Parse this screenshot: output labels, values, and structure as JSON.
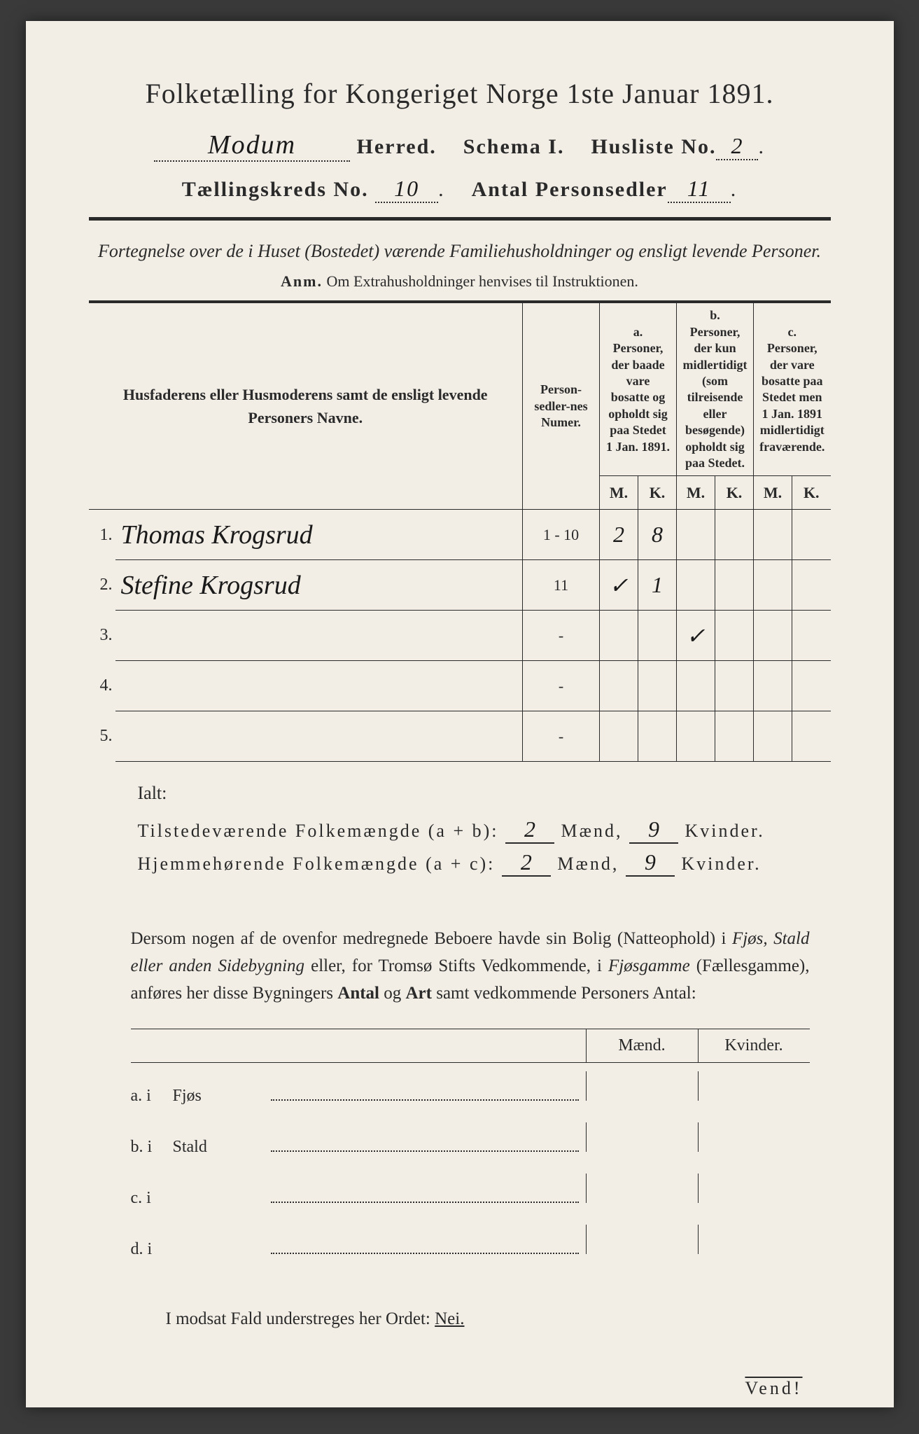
{
  "header": {
    "title": "Folketælling for Kongeriget Norge 1ste Januar 1891.",
    "herred_value": "Modum",
    "herred_label": "Herred.",
    "schema_label": "Schema I.",
    "husliste_label": "Husliste No.",
    "husliste_value": "2",
    "kreds_label": "Tællingskreds No.",
    "kreds_value": "10",
    "antal_label": "Antal Personsedler",
    "antal_value": "11"
  },
  "intro": {
    "text": "Fortegnelse over de i Huset (Bostedet) værende Familiehusholdninger og ensligt levende Personer.",
    "anm_label": "Anm.",
    "anm_text": "Om Extrahusholdninger henvises til Instruktionen."
  },
  "table": {
    "col_name": "Husfaderens eller Husmoderens samt de ensligt levende Personers Navne.",
    "col_pnum": "Person-sedler-nes Numer.",
    "col_a_tag": "a.",
    "col_a": "Personer, der baade vare bosatte og opholdt sig paa Stedet 1 Jan. 1891.",
    "col_b_tag": "b.",
    "col_b": "Personer, der kun midlertidigt (som tilreisende eller besøgende) opholdt sig paa Stedet.",
    "col_c_tag": "c.",
    "col_c": "Personer, der vare bosatte paa Stedet men 1 Jan. 1891 midlertidigt fraværende.",
    "m": "M.",
    "k": "K.",
    "rows": [
      {
        "n": "1.",
        "name": "Thomas Krogsrud",
        "pnum": "1 - 10",
        "a_m": "2",
        "a_k": "8",
        "b_m": "",
        "b_k": "",
        "c_m": "",
        "c_k": ""
      },
      {
        "n": "2.",
        "name": "Stefine Krogsrud",
        "pnum": "11",
        "a_m": "✓",
        "a_k": "1",
        "b_m": "",
        "b_k": "",
        "c_m": "",
        "c_k": ""
      },
      {
        "n": "3.",
        "name": "",
        "pnum": "-",
        "a_m": "",
        "a_k": "",
        "b_m": "✓",
        "b_k": "",
        "c_m": "",
        "c_k": ""
      },
      {
        "n": "4.",
        "name": "",
        "pnum": "-",
        "a_m": "",
        "a_k": "",
        "b_m": "",
        "b_k": "",
        "c_m": "",
        "c_k": ""
      },
      {
        "n": "5.",
        "name": "",
        "pnum": "-",
        "a_m": "",
        "a_k": "",
        "b_m": "",
        "b_k": "",
        "c_m": "",
        "c_k": ""
      }
    ]
  },
  "totals": {
    "ialt": "Ialt:",
    "line1_label": "Tilstedeværende Folkemængde (a + b):",
    "line2_label": "Hjemmehørende Folkemængde (a + c):",
    "maend": "Mænd,",
    "kvinder": "Kvinder.",
    "v1_m": "2",
    "v1_k": "9",
    "v2_m": "2",
    "v2_k": "9"
  },
  "para": {
    "text1": "Dersom nogen af de ovenfor medregnede Beboere havde sin Bolig (Natteophold) i ",
    "it1": "Fjøs, Stald eller anden Sidebygning",
    "text2": " eller, for Tromsø Stifts Vedkommende, i ",
    "it2": "Fjøsgamme",
    "text3": " (Fællesgamme), anføres her disse Bygningers ",
    "b1": "Antal",
    "text4": " og ",
    "b2": "Art",
    "text5": " samt vedkommende Personers Antal:"
  },
  "bldg": {
    "maend": "Mænd.",
    "kvinder": "Kvinder.",
    "rows": [
      {
        "lab": "a. i",
        "typ": "Fjøs"
      },
      {
        "lab": "b. i",
        "typ": "Stald"
      },
      {
        "lab": "c. i",
        "typ": ""
      },
      {
        "lab": "d. i",
        "typ": ""
      }
    ]
  },
  "footer": {
    "modsat": "I modsat Fald understreges her Ordet: ",
    "nei": "Nei.",
    "vend": "Vend!"
  },
  "style": {
    "page_bg": "#f2eee6",
    "ink": "#2a2a2a"
  }
}
